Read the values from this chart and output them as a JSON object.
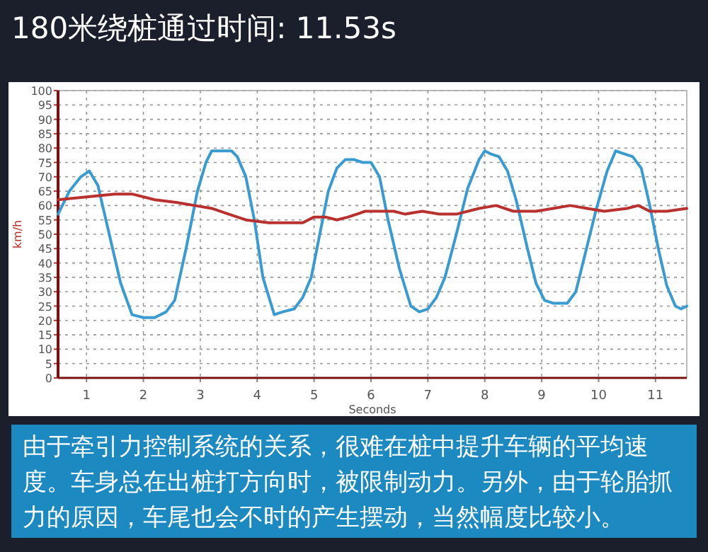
{
  "chart_data": {
    "type": "line",
    "title": "180米绕桩通过时间: 11.53s",
    "xlabel": "Seconds",
    "ylabel": "km/h",
    "annotations": [
      "由于牵引力控制系统的关系，很难在桩中提升车辆的平均速度。车身总在出桩打方向时，被限制动力。另外，由于轮胎抓力的原因，车尾也会不时的产生摆动，当然幅度比较小。"
    ],
    "xlim": [
      0.5,
      11.55
    ],
    "xticks": [
      1,
      2,
      3,
      4,
      5,
      6,
      7,
      8,
      9,
      10,
      11
    ],
    "ylim": [
      0,
      100
    ],
    "yticks": [
      0,
      5,
      10,
      15,
      20,
      25,
      30,
      35,
      40,
      45,
      50,
      55,
      60,
      65,
      70,
      75,
      80,
      85,
      90,
      95,
      100
    ],
    "grid": true,
    "marker": "none",
    "line_style": "solid",
    "series": [
      {
        "color": "#3a9bd0",
        "x": [
          0.5,
          0.7,
          0.9,
          1.05,
          1.2,
          1.4,
          1.6,
          1.8,
          2.0,
          2.2,
          2.4,
          2.55,
          2.75,
          2.95,
          3.1,
          3.2,
          3.35,
          3.55,
          3.65,
          3.8,
          3.95,
          4.1,
          4.3,
          4.45,
          4.65,
          4.8,
          4.95,
          5.1,
          5.25,
          5.4,
          5.55,
          5.7,
          5.85,
          6.0,
          6.15,
          6.3,
          6.5,
          6.7,
          6.85,
          7.0,
          7.15,
          7.3,
          7.5,
          7.7,
          7.9,
          8.0,
          8.1,
          8.25,
          8.4,
          8.55,
          8.75,
          8.9,
          9.05,
          9.2,
          9.45,
          9.6,
          9.75,
          9.95,
          10.15,
          10.3,
          10.45,
          10.6,
          10.75,
          10.9,
          11.05,
          11.2,
          11.35,
          11.45,
          11.55
        ],
        "values": [
          57,
          65,
          70,
          72,
          67,
          50,
          33,
          22,
          21,
          21,
          23,
          27,
          45,
          65,
          75,
          79,
          79,
          79,
          77,
          70,
          55,
          35,
          22,
          23,
          24,
          28,
          35,
          50,
          65,
          73,
          76,
          76,
          75,
          75,
          70,
          55,
          38,
          25,
          23,
          24,
          28,
          35,
          50,
          66,
          76,
          79,
          78,
          77,
          72,
          62,
          45,
          33,
          27,
          26,
          26,
          30,
          42,
          58,
          72,
          79,
          78,
          77,
          73,
          60,
          45,
          32,
          25,
          24,
          25
        ]
      },
      {
        "color": "#b8312f",
        "x": [
          0.5,
          1.0,
          1.5,
          1.8,
          2.2,
          2.6,
          2.9,
          3.2,
          3.5,
          3.8,
          4.2,
          4.5,
          4.8,
          5.0,
          5.2,
          5.4,
          5.6,
          5.9,
          6.2,
          6.4,
          6.6,
          6.9,
          7.2,
          7.5,
          7.9,
          8.2,
          8.5,
          8.9,
          9.2,
          9.5,
          9.8,
          10.1,
          10.5,
          10.7,
          10.9,
          11.2,
          11.55
        ],
        "values": [
          62,
          63,
          64,
          64,
          62,
          61,
          60,
          59,
          57,
          55,
          54,
          54,
          54,
          56,
          56,
          55,
          56,
          58,
          58,
          58,
          57,
          58,
          57,
          57,
          59,
          60,
          58,
          58,
          59,
          60,
          59,
          58,
          59,
          60,
          58,
          58,
          59
        ]
      }
    ]
  }
}
